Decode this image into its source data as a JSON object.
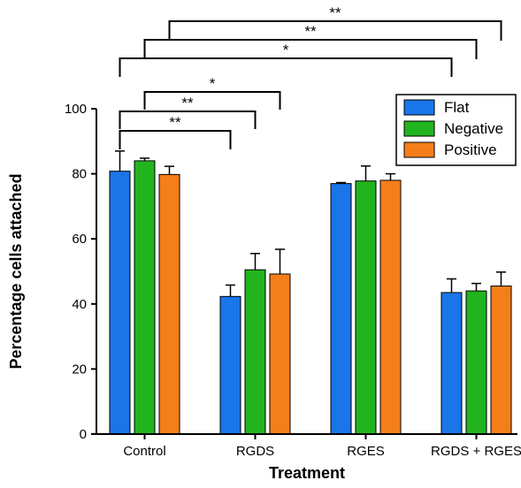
{
  "chart_data": {
    "type": "bar",
    "categories": [
      "Control",
      "RGDS",
      "RGES",
      "RGDS + RGES"
    ],
    "series": [
      {
        "name": "Flat",
        "color": "#1a75e8",
        "values": [
          80.8,
          42.3,
          77.0,
          43.5
        ],
        "errors": [
          6.2,
          3.5,
          0.3,
          4.2
        ]
      },
      {
        "name": "Negative",
        "color": "#22b41e",
        "values": [
          84.0,
          50.5,
          77.8,
          44.0
        ],
        "errors": [
          0.8,
          5.0,
          4.6,
          2.3
        ]
      },
      {
        "name": "Positive",
        "color": "#f47e1a",
        "values": [
          79.8,
          49.2,
          78.0,
          45.5
        ],
        "errors": [
          2.5,
          7.6,
          2.0,
          4.3
        ]
      }
    ],
    "xlabel": "Treatment",
    "ylabel": "Percentage cells attached",
    "ylim": [
      0,
      100
    ],
    "yticks": [
      0,
      20,
      40,
      60,
      80,
      100
    ],
    "legend": "top-right",
    "grid": false,
    "significance": [
      {
        "from": [
          0,
          0
        ],
        "to": [
          1,
          0
        ],
        "label": "**"
      },
      {
        "from": [
          0,
          0
        ],
        "to": [
          1,
          1
        ],
        "label": "**"
      },
      {
        "from": [
          0,
          1
        ],
        "to": [
          1,
          2
        ],
        "label": "*"
      },
      {
        "from": [
          0,
          0
        ],
        "to": [
          3,
          0
        ],
        "label": "*"
      },
      {
        "from": [
          0,
          1
        ],
        "to": [
          3,
          1
        ],
        "label": "**"
      },
      {
        "from": [
          0,
          2
        ],
        "to": [
          3,
          2
        ],
        "label": "**"
      }
    ]
  }
}
